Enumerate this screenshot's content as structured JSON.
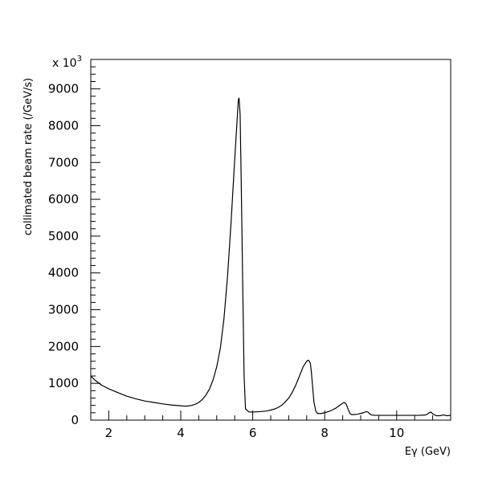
{
  "chart_data": {
    "type": "line",
    "title": "",
    "xlabel": "Eγ (GeV)",
    "ylabel": "collimated beam rate (/GeV/s)",
    "y_multiplier_label": "x 10",
    "y_multiplier_exponent": "3",
    "xlim": [
      1.5,
      11.5
    ],
    "ylim": [
      0,
      9800
    ],
    "x_ticks": [
      2,
      4,
      6,
      8,
      10
    ],
    "y_ticks": [
      0,
      1000,
      2000,
      3000,
      4000,
      5000,
      6000,
      7000,
      8000,
      9000
    ],
    "grid": false,
    "line_color": "#000000",
    "series": [
      {
        "x": [
          1.5,
          1.6,
          1.8,
          2.0,
          2.25,
          2.5,
          2.75,
          3.0,
          3.25,
          3.5,
          3.75,
          4.0,
          4.1,
          4.2,
          4.3,
          4.4,
          4.5,
          4.6,
          4.7,
          4.8,
          4.9,
          5.0,
          5.1,
          5.2,
          5.3,
          5.4,
          5.5,
          5.55,
          5.6,
          5.62,
          5.65,
          5.68,
          5.72,
          5.76,
          5.8,
          5.9,
          6.0,
          6.2,
          6.4,
          6.6,
          6.7,
          6.8,
          6.9,
          7.0,
          7.1,
          7.2,
          7.3,
          7.4,
          7.5,
          7.55,
          7.6,
          7.63,
          7.66,
          7.7,
          7.75,
          7.8,
          7.9,
          8.0,
          8.1,
          8.2,
          8.3,
          8.4,
          8.5,
          8.55,
          8.6,
          8.65,
          8.7,
          8.75,
          8.8,
          8.9,
          9.0,
          9.1,
          9.15,
          9.2,
          9.25,
          9.3,
          9.4,
          9.6,
          9.8,
          10.0,
          10.2,
          10.4,
          10.6,
          10.8,
          10.85,
          10.9,
          10.95,
          11.0,
          11.1,
          11.2,
          11.3,
          11.4,
          11.5
        ],
        "y": [
          1200,
          1100,
          950,
          850,
          750,
          650,
          580,
          520,
          480,
          440,
          410,
          390,
          380,
          385,
          400,
          430,
          480,
          560,
          680,
          850,
          1100,
          1450,
          1950,
          2750,
          3900,
          5400,
          7100,
          7900,
          8700,
          8750,
          8300,
          6500,
          3800,
          1200,
          300,
          220,
          220,
          230,
          250,
          300,
          340,
          400,
          490,
          600,
          760,
          960,
          1200,
          1450,
          1600,
          1630,
          1550,
          1300,
          950,
          500,
          250,
          180,
          180,
          200,
          230,
          270,
          320,
          390,
          460,
          480,
          430,
          300,
          180,
          150,
          150,
          160,
          180,
          210,
          230,
          220,
          170,
          140,
          130,
          130,
          130,
          130,
          130,
          130,
          130,
          140,
          160,
          200,
          220,
          170,
          120,
          120,
          140,
          120,
          130
        ]
      }
    ]
  }
}
